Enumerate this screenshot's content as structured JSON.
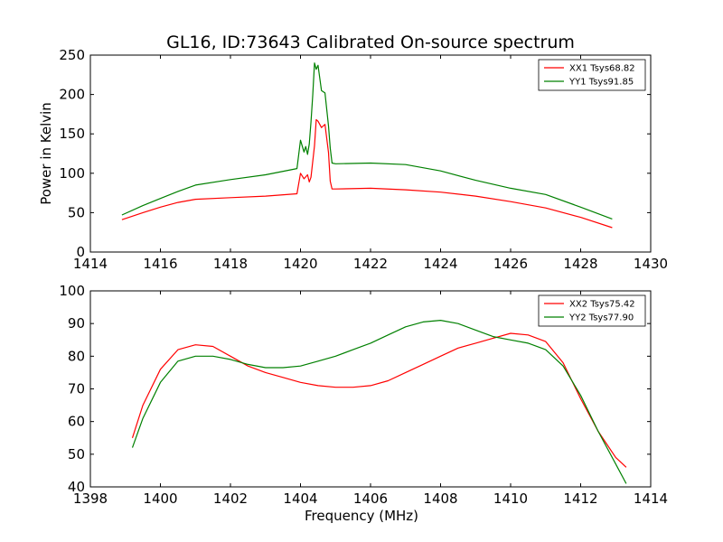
{
  "title": "GL16, ID:73643 Calibrated On-source spectrum",
  "colors": {
    "xx": "#ff0000",
    "yy": "#008000"
  },
  "chart_data": [
    {
      "type": "line",
      "ylabel": "Power in Kelvin",
      "xlabel": "",
      "xlim": [
        1414,
        1430
      ],
      "ylim": [
        0,
        250
      ],
      "xticks": [
        "1414",
        "1416",
        "1418",
        "1420",
        "1422",
        "1424",
        "1426",
        "1428",
        "1430"
      ],
      "yticks": [
        "0",
        "50",
        "100",
        "150",
        "200",
        "250"
      ],
      "legend_position": "top-right",
      "series": [
        {
          "name": "XX1 Tsys68.82",
          "color": "#ff0000",
          "x": [
            1414.9,
            1415.5,
            1416.0,
            1416.5,
            1417.0,
            1418.0,
            1419.0,
            1419.9,
            1420.0,
            1420.1,
            1420.2,
            1420.25,
            1420.3,
            1420.4,
            1420.45,
            1420.5,
            1420.6,
            1420.7,
            1420.8,
            1420.85,
            1420.9,
            1421.0,
            1422.0,
            1423.0,
            1424.0,
            1425.0,
            1426.0,
            1427.0,
            1428.0,
            1428.9
          ],
          "y": [
            41,
            50,
            57,
            63,
            67,
            69,
            71,
            74,
            100,
            93,
            98,
            89,
            95,
            135,
            168,
            166,
            158,
            162,
            126,
            90,
            80,
            80,
            81,
            79,
            76,
            71,
            64,
            56,
            44,
            31
          ]
        },
        {
          "name": "YY1 Tsys91.85",
          "color": "#008000",
          "x": [
            1414.9,
            1415.5,
            1416.0,
            1416.5,
            1417.0,
            1418.0,
            1419.0,
            1419.9,
            1420.0,
            1420.1,
            1420.15,
            1420.2,
            1420.25,
            1420.3,
            1420.35,
            1420.4,
            1420.45,
            1420.5,
            1420.6,
            1420.7,
            1420.8,
            1420.85,
            1420.9,
            1421.0,
            1422.0,
            1423.0,
            1424.0,
            1425.0,
            1426.0,
            1427.0,
            1428.0,
            1428.9
          ],
          "y": [
            47,
            59,
            68,
            77,
            85,
            92,
            98,
            106,
            142,
            127,
            134,
            124,
            137,
            165,
            200,
            240,
            232,
            237,
            205,
            202,
            160,
            132,
            113,
            112,
            113,
            111,
            103,
            91,
            81,
            73,
            57,
            42
          ]
        }
      ]
    },
    {
      "type": "line",
      "ylabel": "",
      "xlabel": "Frequency (MHz)",
      "xlim": [
        1398,
        1414
      ],
      "ylim": [
        40,
        100
      ],
      "xticks": [
        "1398",
        "1400",
        "1402",
        "1404",
        "1406",
        "1408",
        "1410",
        "1412",
        "1414"
      ],
      "yticks": [
        "40",
        "50",
        "60",
        "70",
        "80",
        "90",
        "100"
      ],
      "legend_position": "top-right",
      "series": [
        {
          "name": "XX2 Tsys75.42",
          "color": "#ff0000",
          "x": [
            1399.2,
            1399.5,
            1400.0,
            1400.5,
            1401.0,
            1401.5,
            1402.0,
            1402.5,
            1403.0,
            1403.5,
            1404.0,
            1404.5,
            1405.0,
            1405.5,
            1406.0,
            1406.5,
            1407.0,
            1407.5,
            1408.0,
            1408.5,
            1409.0,
            1409.5,
            1410.0,
            1410.5,
            1411.0,
            1411.5,
            1412.0,
            1412.5,
            1413.0,
            1413.3
          ],
          "y": [
            55,
            65,
            76,
            82,
            83.5,
            83,
            80,
            77,
            75,
            73.5,
            72,
            71,
            70.5,
            70.5,
            71,
            72.5,
            75,
            77.5,
            80,
            82.5,
            84,
            85.5,
            87,
            86.5,
            84.5,
            78,
            67,
            57,
            49,
            46
          ]
        },
        {
          "name": "YY2 Tsys77.90",
          "color": "#008000",
          "x": [
            1399.2,
            1399.5,
            1400.0,
            1400.5,
            1401.0,
            1401.5,
            1402.0,
            1402.5,
            1403.0,
            1403.5,
            1404.0,
            1404.5,
            1405.0,
            1405.5,
            1406.0,
            1406.5,
            1407.0,
            1407.5,
            1408.0,
            1408.5,
            1409.0,
            1409.5,
            1410.0,
            1410.5,
            1411.0,
            1411.5,
            1412.0,
            1412.5,
            1413.0,
            1413.3
          ],
          "y": [
            52,
            61,
            72,
            78.5,
            80,
            80,
            79,
            77.5,
            76.5,
            76.5,
            77,
            78.5,
            80,
            82,
            84,
            86.5,
            89,
            90.5,
            91,
            90,
            88,
            86,
            85,
            84,
            82,
            77,
            68,
            57,
            47,
            41
          ]
        }
      ]
    }
  ]
}
